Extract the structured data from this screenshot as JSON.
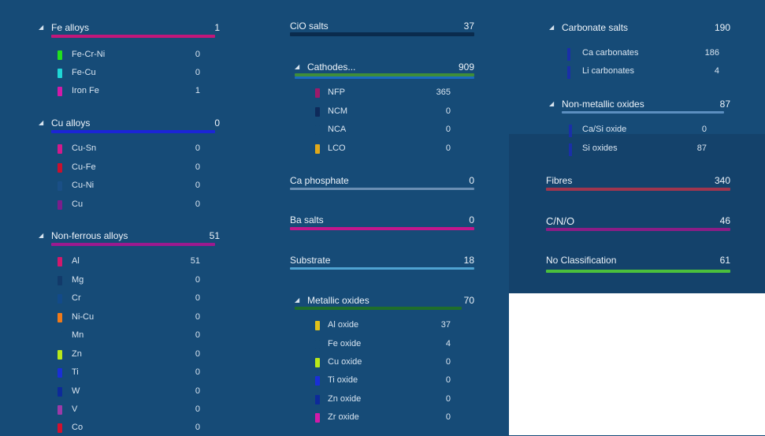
{
  "colors": {
    "background": "#164b77",
    "panel_dark": "#14426b",
    "fe_bar": "#c2177a",
    "cu_bar": "#1b25d6",
    "nonferrous_bar": "#9c1a8f",
    "cio_bar": "#0a2b4d",
    "cathodes_bar": "#3f8d3a",
    "ca_phosphate_bar": "#6b8fb3",
    "ba_salts_bar": "#c2178c",
    "substrate_bar": "#4fa3d1",
    "metallic_oxides_bar": "#1f6e2b",
    "fibres_bar": "#a0354e",
    "cno_bar": "#8b1d86",
    "noclass_bar": "#4bbf3c",
    "carbonate_bar": "#1a2fa8",
    "nonmetallic_bar": "#5c8fc0"
  },
  "col1": {
    "fe": {
      "title": "Fe alloys",
      "count": "1",
      "items": [
        {
          "label": "Fe-Cr-Ni",
          "value": "0",
          "color": "#22e01e"
        },
        {
          "label": "Fe-Cu",
          "value": "0",
          "color": "#1fd6d6"
        },
        {
          "label": "Iron Fe",
          "value": "1",
          "color": "#d21aa8"
        }
      ]
    },
    "cu": {
      "title": "Cu alloys",
      "count": "0",
      "items": [
        {
          "label": "Cu-Sn",
          "value": "0",
          "color": "#d21a8c"
        },
        {
          "label": "Cu-Fe",
          "value": "0",
          "color": "#c8102e"
        },
        {
          "label": "Cu-Ni",
          "value": "0",
          "color": "#1a4f86"
        },
        {
          "label": "Cu",
          "value": "0",
          "color": "#7a1e8c"
        }
      ]
    },
    "nonferrous": {
      "title": "Non-ferrous alloys",
      "count": "51",
      "items": [
        {
          "label": "Al",
          "value": "51",
          "color": "#d2186c"
        },
        {
          "label": "Mg",
          "value": "0",
          "color": "#123a6a"
        },
        {
          "label": "Cr",
          "value": "0",
          "color": "#124a8a"
        },
        {
          "label": "Ni-Cu",
          "value": "0",
          "color": "#f07a1a"
        },
        {
          "label": "Mn",
          "value": "0",
          "color": "#164b77"
        },
        {
          "label": "Zn",
          "value": "0",
          "color": "#b8e81a"
        },
        {
          "label": "Ti",
          "value": "0",
          "color": "#1a2fd6"
        },
        {
          "label": "W",
          "value": "0",
          "color": "#0d2a9a"
        },
        {
          "label": "V",
          "value": "0",
          "color": "#9c3aa8"
        },
        {
          "label": "Co",
          "value": "0",
          "color": "#d2102e"
        }
      ]
    }
  },
  "col2": {
    "cio": {
      "title": "CiO salts",
      "count": "37"
    },
    "cathodes": {
      "title": "Cathodes...",
      "count": "909",
      "items": [
        {
          "label": "NFP",
          "value": "365",
          "color": "#9c1a6a"
        },
        {
          "label": "NCM",
          "value": "0",
          "color": "#0e2a5a"
        },
        {
          "label": "NCA",
          "value": "0",
          "color": "#164b77"
        },
        {
          "label": "LCO",
          "value": "0",
          "color": "#e0a81a"
        }
      ]
    },
    "ca_phosphate": {
      "title": "Ca phosphate",
      "count": "0"
    },
    "ba_salts": {
      "title": "Ba salts",
      "count": "0"
    },
    "substrate": {
      "title": "Substrate",
      "count": "18"
    },
    "metallic_oxides": {
      "title": "Metallic oxides",
      "count": "70",
      "items": [
        {
          "label": "Al oxide",
          "value": "37",
          "color": "#e0c01a"
        },
        {
          "label": "Fe oxide",
          "value": "4",
          "color": "#164b77"
        },
        {
          "label": "Cu oxide",
          "value": "0",
          "color": "#b8e81a"
        },
        {
          "label": "Ti oxide",
          "value": "0",
          "color": "#1a2fd6"
        },
        {
          "label": "Zn oxide",
          "value": "0",
          "color": "#0d2a9a"
        },
        {
          "label": "Zr oxide",
          "value": "0",
          "color": "#d21aa8"
        }
      ]
    }
  },
  "col3": {
    "carbonate": {
      "title": "Carbonate salts",
      "count": "190",
      "items": [
        {
          "label": "Ca carbonates",
          "value": "186"
        },
        {
          "label": "Li carbonates",
          "value": "4"
        }
      ]
    },
    "nonmetallic": {
      "title": "Non-metallic oxides",
      "count": "87",
      "items": [
        {
          "label": "Ca/Si oxide",
          "value": "0"
        },
        {
          "label": "Si oxides",
          "value": "87"
        }
      ]
    },
    "fibres": {
      "title": "Fibres",
      "count": "340"
    },
    "cno": {
      "title": "C/N/O",
      "count": "46"
    },
    "noclass": {
      "title": "No Classification",
      "count": "61"
    }
  }
}
